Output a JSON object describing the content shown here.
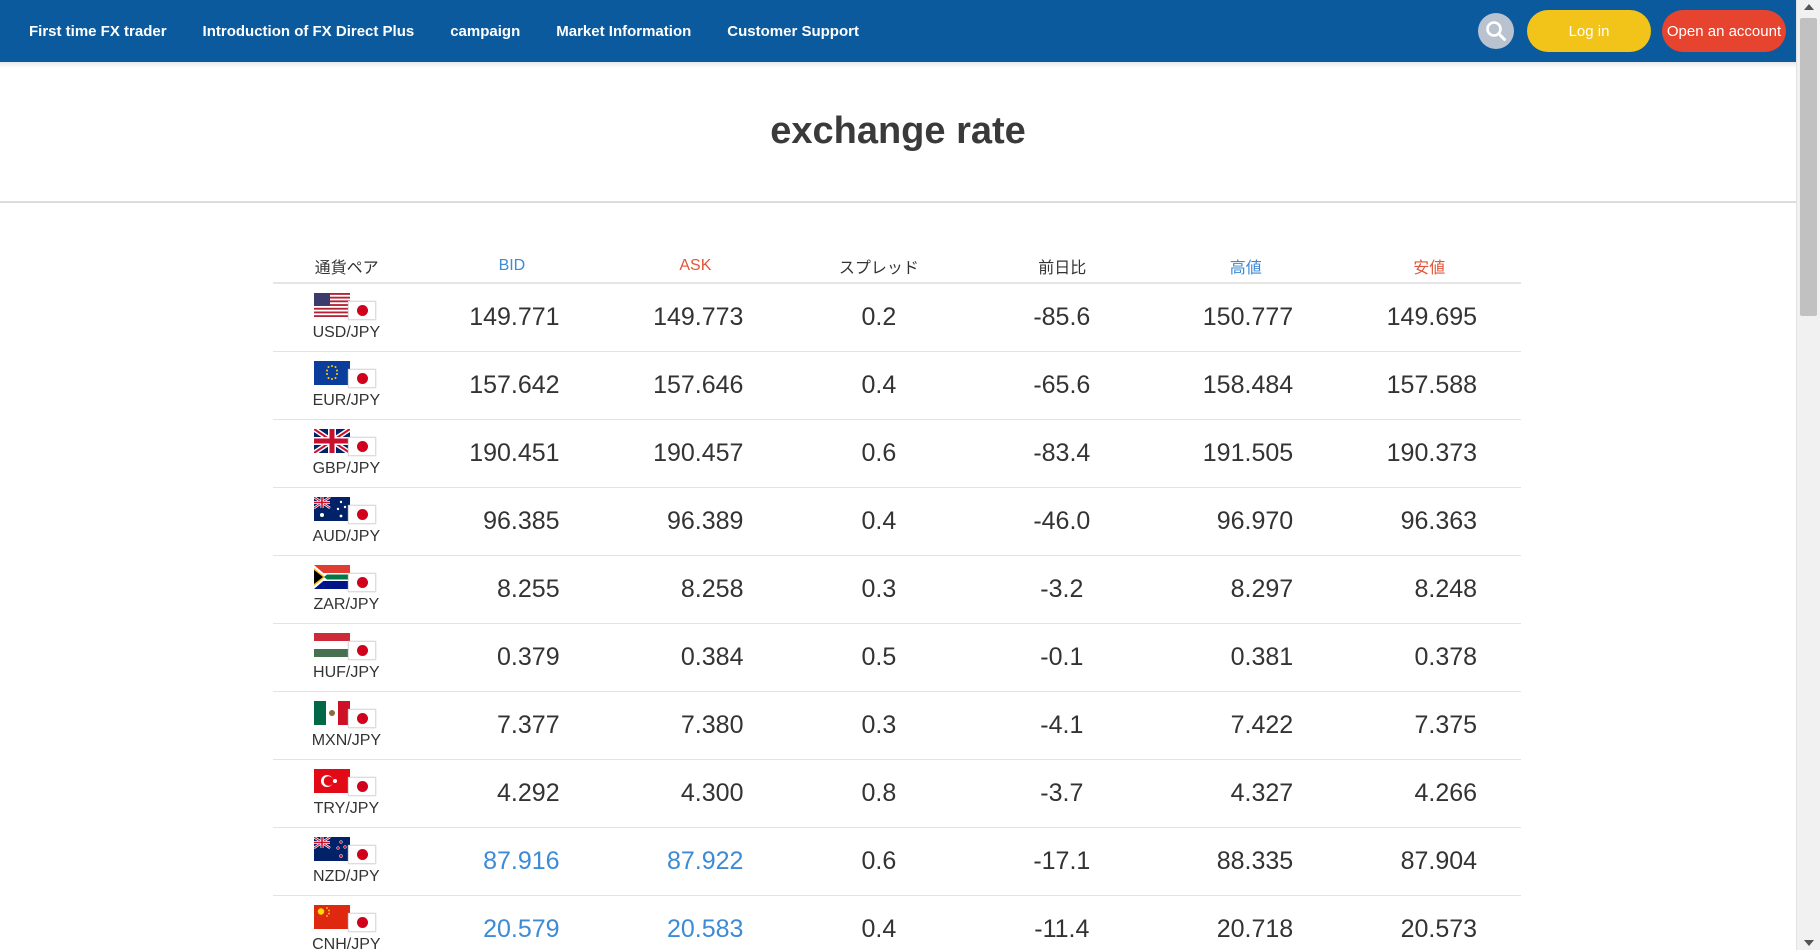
{
  "nav": {
    "items": [
      "First time FX trader",
      "Introduction of FX Direct Plus",
      "campaign",
      "Market Information",
      "Customer Support"
    ],
    "login_label": "Log in",
    "open_account_label": "Open an account"
  },
  "page_title": "exchange rate",
  "table": {
    "headers": {
      "pair": "通貨ペア",
      "bid": "BID",
      "ask": "ASK",
      "spread": "スプレッド",
      "change": "前日比",
      "high": "高値",
      "low": "安値"
    },
    "rows": [
      {
        "pair": "USD/JPY",
        "flag": "us-flag-icon",
        "bid": "149.771",
        "ask": "149.773",
        "spread": "0.2",
        "change": "-85.6",
        "high": "150.777",
        "low": "149.695",
        "highlight": false
      },
      {
        "pair": "EUR/JPY",
        "flag": "eu-flag-icon",
        "bid": "157.642",
        "ask": "157.646",
        "spread": "0.4",
        "change": "-65.6",
        "high": "158.484",
        "low": "157.588",
        "highlight": false
      },
      {
        "pair": "GBP/JPY",
        "flag": "gb-flag-icon",
        "bid": "190.451",
        "ask": "190.457",
        "spread": "0.6",
        "change": "-83.4",
        "high": "191.505",
        "low": "190.373",
        "highlight": false
      },
      {
        "pair": "AUD/JPY",
        "flag": "au-flag-icon",
        "bid": "96.385",
        "ask": "96.389",
        "spread": "0.4",
        "change": "-46.0",
        "high": "96.970",
        "low": "96.363",
        "highlight": false
      },
      {
        "pair": "ZAR/JPY",
        "flag": "za-flag-icon",
        "bid": "8.255",
        "ask": "8.258",
        "spread": "0.3",
        "change": "-3.2",
        "high": "8.297",
        "low": "8.248",
        "highlight": false
      },
      {
        "pair": "HUF/JPY",
        "flag": "hu-flag-icon",
        "bid": "0.379",
        "ask": "0.384",
        "spread": "0.5",
        "change": "-0.1",
        "high": "0.381",
        "low": "0.378",
        "highlight": false
      },
      {
        "pair": "MXN/JPY",
        "flag": "mx-flag-icon",
        "bid": "7.377",
        "ask": "7.380",
        "spread": "0.3",
        "change": "-4.1",
        "high": "7.422",
        "low": "7.375",
        "highlight": false
      },
      {
        "pair": "TRY/JPY",
        "flag": "tr-flag-icon",
        "bid": "4.292",
        "ask": "4.300",
        "spread": "0.8",
        "change": "-3.7",
        "high": "4.327",
        "low": "4.266",
        "highlight": false
      },
      {
        "pair": "NZD/JPY",
        "flag": "nz-flag-icon",
        "bid": "87.916",
        "ask": "87.922",
        "spread": "0.6",
        "change": "-17.1",
        "high": "88.335",
        "low": "87.904",
        "highlight": true
      },
      {
        "pair": "CNH/JPY",
        "flag": "cn-flag-icon",
        "bid": "20.579",
        "ask": "20.583",
        "spread": "0.4",
        "change": "-11.4",
        "high": "20.718",
        "low": "20.573",
        "highlight": true
      }
    ]
  },
  "colors": {
    "header_bg": "#0b5a9e",
    "login_bg": "#f2c318",
    "open_account_bg": "#e6442e",
    "bid_color": "#3d8ad6",
    "ask_color": "#e2553a"
  }
}
